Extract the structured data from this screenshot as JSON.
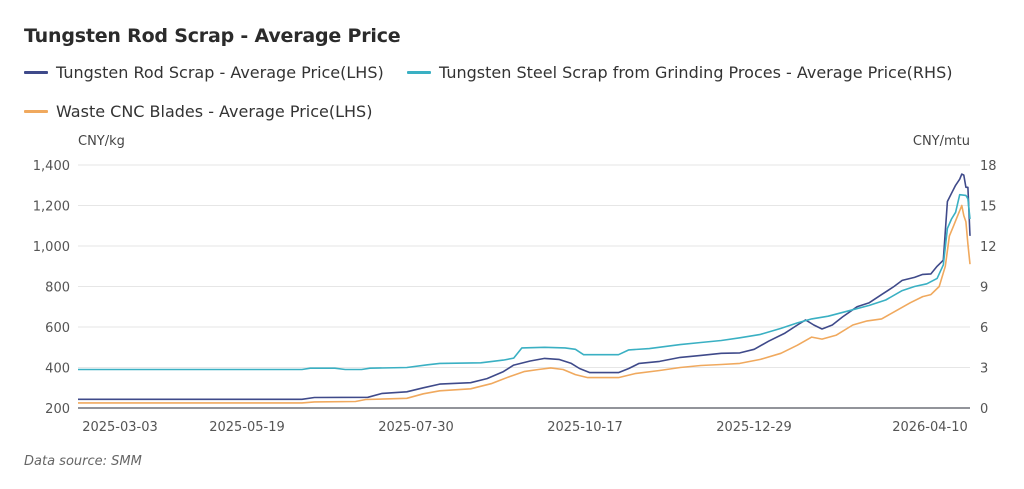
{
  "title": "Tungsten Rod Scrap - Average Price",
  "source": "Data source:  SMM",
  "chart_data": {
    "type": "line",
    "title": "Tungsten Rod Scrap - Average Price",
    "left_axis": {
      "unit": "CNY/kg",
      "ylim": [
        200,
        1400
      ],
      "ticks": [
        "1,400",
        "1,200",
        "1,000",
        "800",
        "600",
        "400",
        "200"
      ],
      "tick_values": [
        1400,
        1200,
        1000,
        800,
        600,
        400,
        200
      ]
    },
    "right_axis": {
      "unit": "CNY/mtu",
      "ylim": [
        0,
        18
      ],
      "ticks": [
        "18",
        "15",
        "12",
        "9",
        "6",
        "3",
        "0"
      ],
      "tick_values": [
        18,
        15,
        12,
        9,
        6,
        3,
        0
      ]
    },
    "x_range": [
      "2025-02-10",
      "2026-04-20"
    ],
    "x_ticks": [
      "2025-03-03",
      "2025-05-19",
      "2025-07-30",
      "2025-10-17",
      "2025-12-29",
      "2026-04-10"
    ],
    "grid": true,
    "legend_position": "top-left",
    "series": [
      {
        "name": "Tungsten Rod Scrap - Average Price(LHS)",
        "axis": "left",
        "color": "#3f4a8a",
        "points": [
          [
            "2025-02-10",
            243
          ],
          [
            "2025-05-30",
            243
          ],
          [
            "2025-06-05",
            252
          ],
          [
            "2025-07-01",
            253
          ],
          [
            "2025-07-08",
            272
          ],
          [
            "2025-07-20",
            280
          ],
          [
            "2025-07-28",
            300
          ],
          [
            "2025-08-05",
            318
          ],
          [
            "2025-08-20",
            325
          ],
          [
            "2025-08-28",
            345
          ],
          [
            "2025-09-05",
            380
          ],
          [
            "2025-09-10",
            412
          ],
          [
            "2025-09-18",
            432
          ],
          [
            "2025-09-25",
            445
          ],
          [
            "2025-10-02",
            440
          ],
          [
            "2025-10-08",
            420
          ],
          [
            "2025-10-12",
            395
          ],
          [
            "2025-10-17",
            375
          ],
          [
            "2025-10-25",
            375
          ],
          [
            "2025-10-31",
            375
          ],
          [
            "2025-11-05",
            395
          ],
          [
            "2025-11-10",
            420
          ],
          [
            "2025-11-20",
            430
          ],
          [
            "2025-11-30",
            450
          ],
          [
            "2025-12-10",
            460
          ],
          [
            "2025-12-20",
            470
          ],
          [
            "2025-12-29",
            472
          ],
          [
            "2026-01-05",
            490
          ],
          [
            "2026-01-12",
            530
          ],
          [
            "2026-01-20",
            570
          ],
          [
            "2026-01-26",
            610
          ],
          [
            "2026-01-30",
            635
          ],
          [
            "2026-02-03",
            610
          ],
          [
            "2026-02-07",
            590
          ],
          [
            "2026-02-12",
            610
          ],
          [
            "2026-02-17",
            650
          ],
          [
            "2026-02-24",
            700
          ],
          [
            "2026-03-02",
            720
          ],
          [
            "2026-03-08",
            760
          ],
          [
            "2026-03-14",
            800
          ],
          [
            "2026-03-18",
            830
          ],
          [
            "2026-03-24",
            845
          ],
          [
            "2026-03-28",
            860
          ],
          [
            "2026-04-01",
            862
          ],
          [
            "2026-04-04",
            900
          ],
          [
            "2026-04-07",
            930
          ],
          [
            "2026-04-09",
            1220
          ],
          [
            "2026-04-11",
            1260
          ],
          [
            "2026-04-13",
            1300
          ],
          [
            "2026-04-15",
            1330
          ],
          [
            "2026-04-16",
            1355
          ],
          [
            "2026-04-17",
            1350
          ],
          [
            "2026-04-18",
            1290
          ],
          [
            "2026-04-19",
            1290
          ],
          [
            "2026-04-20",
            1050
          ]
        ]
      },
      {
        "name": "Tungsten Steel Scrap from Grinding Proces - Average Price(RHS)",
        "axis": "right",
        "color": "#3ab0c3",
        "points": [
          [
            "2025-02-10",
            2.85
          ],
          [
            "2025-05-30",
            2.85
          ],
          [
            "2025-06-03",
            2.95
          ],
          [
            "2025-06-15",
            2.95
          ],
          [
            "2025-06-20",
            2.85
          ],
          [
            "2025-06-28",
            2.85
          ],
          [
            "2025-07-02",
            2.95
          ],
          [
            "2025-07-20",
            3.0
          ],
          [
            "2025-07-30",
            3.2
          ],
          [
            "2025-08-05",
            3.3
          ],
          [
            "2025-08-25",
            3.35
          ],
          [
            "2025-09-05",
            3.55
          ],
          [
            "2025-09-10",
            3.7
          ],
          [
            "2025-09-14",
            4.45
          ],
          [
            "2025-09-25",
            4.5
          ],
          [
            "2025-10-05",
            4.45
          ],
          [
            "2025-10-10",
            4.35
          ],
          [
            "2025-10-14",
            3.95
          ],
          [
            "2025-10-31",
            3.95
          ],
          [
            "2025-11-05",
            4.3
          ],
          [
            "2025-11-15",
            4.4
          ],
          [
            "2025-11-30",
            4.7
          ],
          [
            "2025-12-10",
            4.85
          ],
          [
            "2025-12-20",
            5.0
          ],
          [
            "2025-12-29",
            5.2
          ],
          [
            "2026-01-08",
            5.45
          ],
          [
            "2026-01-18",
            5.9
          ],
          [
            "2026-01-26",
            6.3
          ],
          [
            "2026-02-02",
            6.6
          ],
          [
            "2026-02-10",
            6.8
          ],
          [
            "2026-02-20",
            7.2
          ],
          [
            "2026-03-02",
            7.6
          ],
          [
            "2026-03-10",
            8.0
          ],
          [
            "2026-03-18",
            8.7
          ],
          [
            "2026-03-24",
            9.0
          ],
          [
            "2026-03-30",
            9.2
          ],
          [
            "2026-04-04",
            9.6
          ],
          [
            "2026-04-07",
            10.6
          ],
          [
            "2026-04-09",
            13.3
          ],
          [
            "2026-04-11",
            14.0
          ],
          [
            "2026-04-13",
            14.5
          ],
          [
            "2026-04-15",
            15.8
          ],
          [
            "2026-04-18",
            15.75
          ],
          [
            "2026-04-19",
            15.5
          ],
          [
            "2026-04-20",
            14.0
          ]
        ]
      },
      {
        "name": "Waste CNC Blades - Average Price(LHS)",
        "axis": "left",
        "color": "#f0a95e",
        "points": [
          [
            "2025-02-10",
            225
          ],
          [
            "2025-05-30",
            225
          ],
          [
            "2025-06-05",
            230
          ],
          [
            "2025-06-25",
            232
          ],
          [
            "2025-06-30",
            242
          ],
          [
            "2025-07-20",
            248
          ],
          [
            "2025-07-28",
            270
          ],
          [
            "2025-08-05",
            285
          ],
          [
            "2025-08-20",
            295
          ],
          [
            "2025-08-30",
            320
          ],
          [
            "2025-09-08",
            355
          ],
          [
            "2025-09-15",
            380
          ],
          [
            "2025-09-22",
            390
          ],
          [
            "2025-09-28",
            398
          ],
          [
            "2025-10-04",
            390
          ],
          [
            "2025-10-10",
            365
          ],
          [
            "2025-10-16",
            350
          ],
          [
            "2025-10-31",
            350
          ],
          [
            "2025-11-08",
            370
          ],
          [
            "2025-11-20",
            385
          ],
          [
            "2025-11-30",
            400
          ],
          [
            "2025-12-10",
            410
          ],
          [
            "2025-12-20",
            415
          ],
          [
            "2025-12-29",
            420
          ],
          [
            "2026-01-08",
            440
          ],
          [
            "2026-01-18",
            470
          ],
          [
            "2026-01-26",
            510
          ],
          [
            "2026-02-02",
            550
          ],
          [
            "2026-02-07",
            540
          ],
          [
            "2026-02-14",
            560
          ],
          [
            "2026-02-22",
            610
          ],
          [
            "2026-03-01",
            630
          ],
          [
            "2026-03-08",
            640
          ],
          [
            "2026-03-15",
            680
          ],
          [
            "2026-03-22",
            720
          ],
          [
            "2026-03-28",
            750
          ],
          [
            "2026-04-01",
            760
          ],
          [
            "2026-04-05",
            800
          ],
          [
            "2026-04-08",
            900
          ],
          [
            "2026-04-10",
            1050
          ],
          [
            "2026-04-12",
            1100
          ],
          [
            "2026-04-14",
            1150
          ],
          [
            "2026-04-16",
            1200
          ],
          [
            "2026-04-17",
            1150
          ],
          [
            "2026-04-18",
            1120
          ],
          [
            "2026-04-19",
            1010
          ],
          [
            "2026-04-20",
            910
          ]
        ]
      }
    ]
  }
}
